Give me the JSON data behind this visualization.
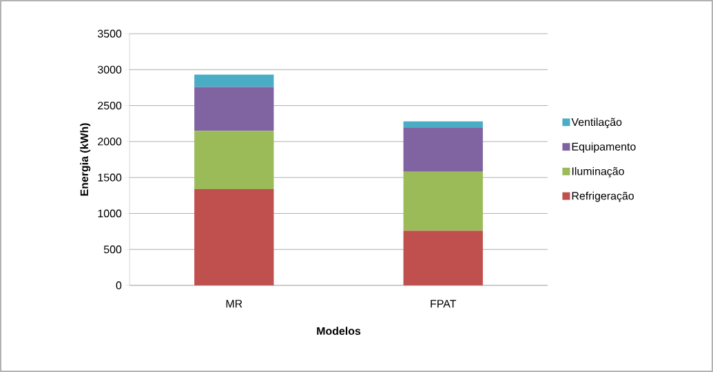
{
  "chart_data": {
    "type": "bar",
    "stacked": true,
    "xlabel": "Modelos",
    "ylabel": "Energia (kWh)",
    "categories": [
      "MR",
      "FPAT"
    ],
    "series": [
      {
        "name": "Refrigeração",
        "color": "#c0504d",
        "values": [
          1340,
          760
        ]
      },
      {
        "name": "Iluminação",
        "color": "#9bbb59",
        "values": [
          810,
          820
        ]
      },
      {
        "name": "Equipamento",
        "color": "#8064a2",
        "values": [
          610,
          610
        ]
      },
      {
        "name": "Ventilação",
        "color": "#4bacc6",
        "values": [
          170,
          90
        ]
      }
    ],
    "ylim": [
      0,
      3500
    ],
    "yticks": [
      0,
      500,
      1000,
      1500,
      2000,
      2500,
      3000,
      3500
    ],
    "grid": "y",
    "legend": "right"
  }
}
